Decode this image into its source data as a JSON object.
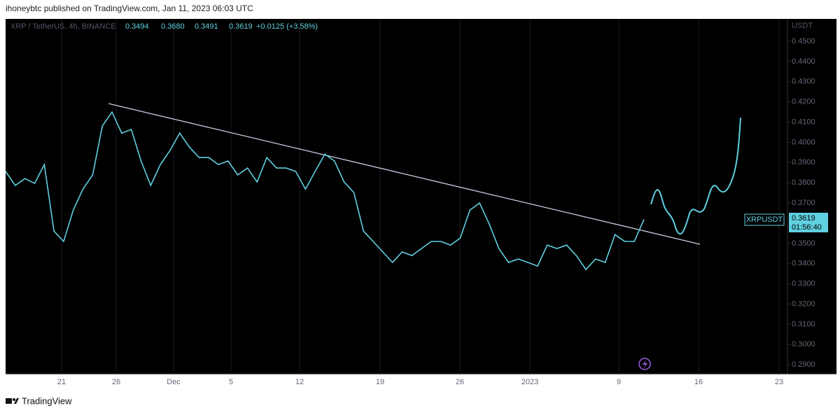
{
  "header": {
    "published": "ihoneybtc published on TradingView.com, Jan 11, 2023 06:03 UTC"
  },
  "legend": {
    "symbol": "XRP / TetherUS, 4h, BINANCE",
    "open": "0.3494",
    "high": "0.3680",
    "low": "0.3491",
    "close": "0.3619",
    "change": "+0.0125 (+3.58%)"
  },
  "price_axis": {
    "unit": "USDT",
    "ylim": [
      0.2852,
      0.4611
    ],
    "ticks": [
      {
        "value": 0.45,
        "label": "0.4500"
      },
      {
        "value": 0.44,
        "label": "0.4400"
      },
      {
        "value": 0.43,
        "label": "0.4300"
      },
      {
        "value": 0.42,
        "label": "0.4200"
      },
      {
        "value": 0.41,
        "label": "0.4100"
      },
      {
        "value": 0.4,
        "label": "0.4000"
      },
      {
        "value": 0.39,
        "label": "0.3900"
      },
      {
        "value": 0.38,
        "label": "0.3800"
      },
      {
        "value": 0.37,
        "label": "0.3700"
      },
      {
        "value": 0.35,
        "label": "0.3500"
      },
      {
        "value": 0.34,
        "label": "0.3400"
      },
      {
        "value": 0.33,
        "label": "0.3300"
      },
      {
        "value": 0.32,
        "label": "0.3200"
      },
      {
        "value": 0.31,
        "label": "0.3100"
      },
      {
        "value": 0.3,
        "label": "0.3000"
      },
      {
        "value": 0.29,
        "label": "0.2900"
      }
    ]
  },
  "price_label": {
    "symbol": "XRPUSDT",
    "price": "0.3619",
    "countdown": "01:56:40"
  },
  "close": [
    0.3856,
    0.3787,
    0.3821,
    0.3797,
    0.389,
    0.3561,
    0.351,
    0.3665,
    0.3769,
    0.3839,
    0.4081,
    0.415,
    0.4046,
    0.4064,
    0.3908,
    0.3787,
    0.389,
    0.396,
    0.4046,
    0.3977,
    0.3925,
    0.3925,
    0.389,
    0.3908,
    0.3839,
    0.3873,
    0.3804,
    0.3925,
    0.3873,
    0.3873,
    0.3856,
    0.3769,
    0.3856,
    0.3942,
    0.3908,
    0.3804,
    0.3752,
    0.3561,
    0.351,
    0.3458,
    0.3406,
    0.3458,
    0.344,
    0.3475,
    0.351,
    0.351,
    0.3492,
    0.3527,
    0.3665,
    0.37,
    0.3596,
    0.3475,
    0.3406,
    0.3423,
    0.3406,
    0.3388,
    0.3492,
    0.3475,
    0.3492,
    0.344,
    0.3371,
    0.3423,
    0.3406,
    0.3544,
    0.351,
    0.351,
    0.3619
  ],
  "time_axis": {
    "labels": [
      "21",
      "26",
      "Dec",
      "5",
      "12",
      "19",
      "26",
      "2023",
      "9",
      "16",
      "23"
    ]
  },
  "footer": {
    "brand": "TradingView"
  }
}
